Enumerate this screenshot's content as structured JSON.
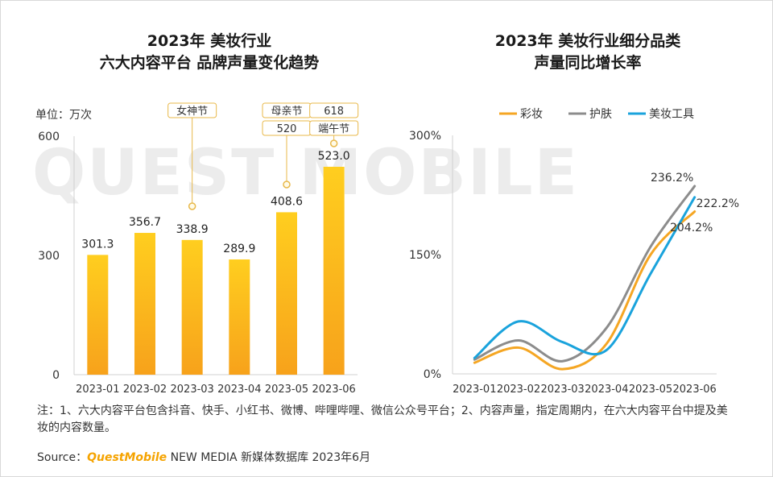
{
  "left_chart_title": [
    "2023年 美妆行业",
    "六大内容平台 品牌声量变化趋势"
  ],
  "right_chart_title": [
    "2023年 美妆行业细分品类",
    "声量同比增长率"
  ],
  "unit_label": "单位：万次",
  "watermark": "QUEST MOBILE",
  "colors": {
    "bar_top": "#ffce1f",
    "bar_bottom": "#f7a21b",
    "makeup": "#f5a623",
    "skincare": "#8c8c8c",
    "tools": "#1aa3dc",
    "callout": "#e8b84a"
  },
  "chart_data": [
    {
      "type": "bar",
      "categories": [
        "2023-01",
        "2023-02",
        "2023-03",
        "2023-04",
        "2023-05",
        "2023-06"
      ],
      "values": [
        301.3,
        356.7,
        338.9,
        289.9,
        408.6,
        523.0
      ],
      "value_labels": [
        "301.3",
        "356.7",
        "338.9",
        "289.9",
        "408.6",
        "523.0"
      ],
      "ylim": [
        0,
        600
      ],
      "yticks": [
        "0",
        "300",
        "600"
      ],
      "annotations": [
        {
          "category": "2023-03",
          "labels": [
            "女神节"
          ]
        },
        {
          "category": "2023-05",
          "labels": [
            "母亲节",
            "520"
          ]
        },
        {
          "category": "2023-06",
          "labels": [
            "618",
            "端午节"
          ]
        }
      ]
    },
    {
      "type": "line",
      "x": [
        "2023-01",
        "2023-02",
        "2023-03",
        "2023-04",
        "2023-05",
        "2023-06"
      ],
      "ylim": [
        0,
        300
      ],
      "yticks": [
        "0%",
        "150%",
        "300%"
      ],
      "legend_position": "top",
      "series": [
        {
          "name": "彩妆",
          "values": [
            14,
            33,
            6,
            38,
            150,
            204.2
          ],
          "end_label": "204.2%"
        },
        {
          "name": "护肤",
          "values": [
            18,
            42,
            16,
            58,
            160,
            236.2
          ],
          "end_label": "236.2%"
        },
        {
          "name": "美妆工具",
          "values": [
            20,
            66,
            40,
            30,
            126,
            222.2
          ],
          "end_label": "222.2%"
        }
      ]
    }
  ],
  "note": "注：1、六大内容平台包含抖音、快手、小红书、微博、哔哩哔哩、微信公众号平台；2、内容声量，指定周期内，在六大内容平台中提及美妆的内容数量。",
  "source_prefix": "Source：",
  "source_brand": "QuestMobile",
  "source_suffix": " NEW MEDIA 新媒体数据库 2023年6月"
}
